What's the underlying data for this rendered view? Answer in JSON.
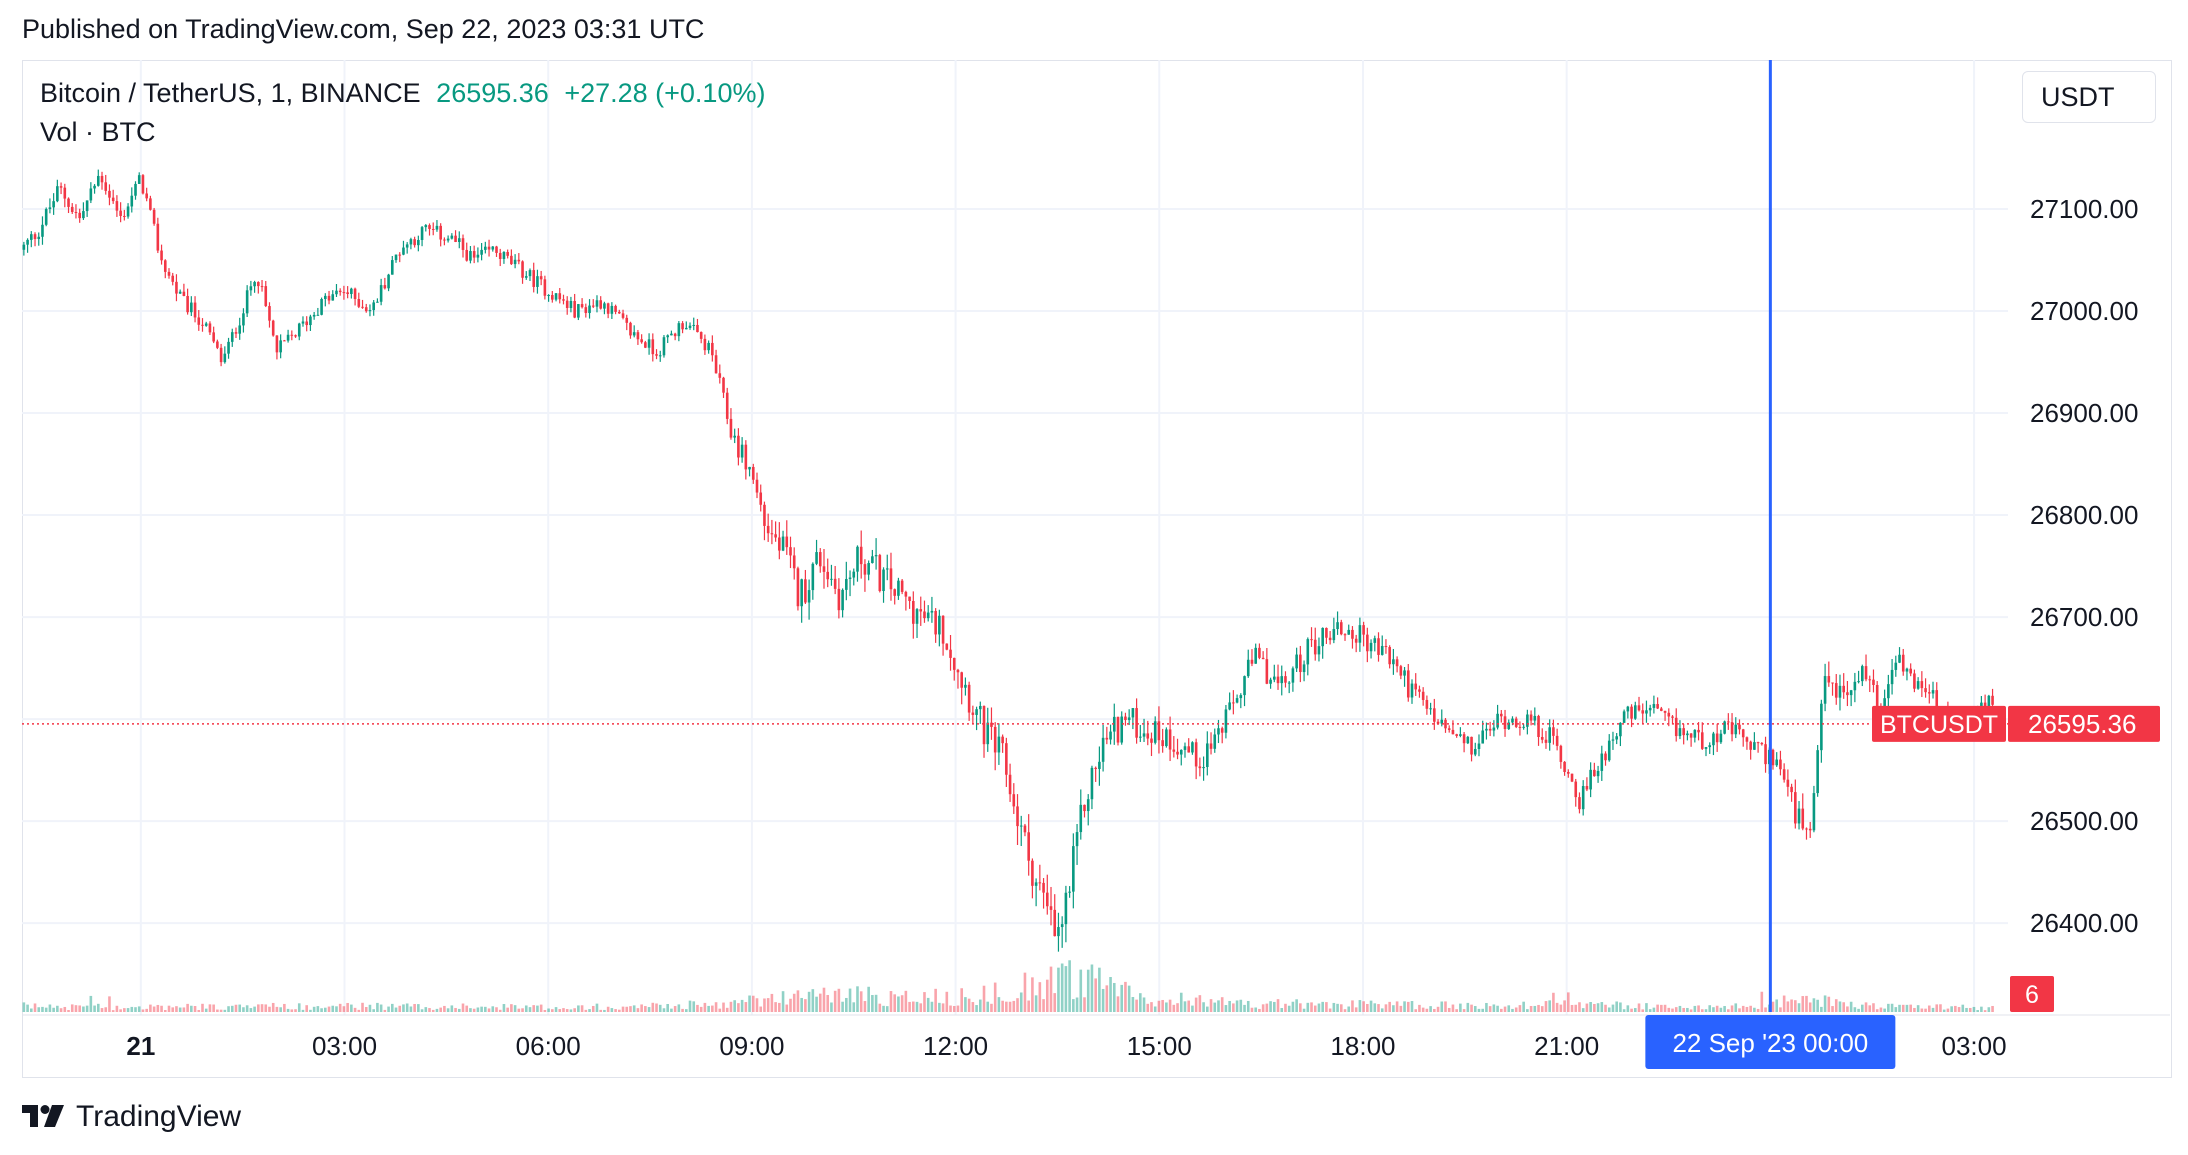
{
  "header": {
    "published": "Published on TradingView.com, Sep 22, 2023 03:31 UTC"
  },
  "legend": {
    "symbol": "Bitcoin / TetherUS, 1, BINANCE",
    "price": "26595.36",
    "change": "+27.28 (+0.10%)",
    "volume_label": "Vol · BTC"
  },
  "currency_button": "USDT",
  "footer": {
    "brand": "TradingView"
  },
  "colors": {
    "up": "#089981",
    "down": "#f23645",
    "crosshair": "#2962ff",
    "grid": "#f0f3fa",
    "price_line": "#f23645"
  },
  "chart_data": {
    "type": "candlestick",
    "symbol": "BTCUSDT",
    "exchange": "BINANCE",
    "interval": "1",
    "last_price": 26595.36,
    "last_price_label": "26595.36",
    "symbol_tag": "BTCUSDT",
    "volume_tag": "6",
    "y_ticks": [
      "27100.00",
      "27000.00",
      "26900.00",
      "26800.00",
      "26700.00",
      "26600.00",
      "26500.00",
      "26400.00"
    ],
    "y_tick_values": [
      27100,
      27000,
      26900,
      26800,
      26700,
      26600,
      26500,
      26400
    ],
    "ylim": [
      26310,
      27246
    ],
    "x_ticks": [
      "21",
      "03:00",
      "06:00",
      "09:00",
      "12:00",
      "15:00",
      "18:00",
      "21:00",
      "00:00",
      "03:00"
    ],
    "x_tick_hours": [
      0,
      3,
      6,
      9,
      12,
      15,
      18,
      21,
      24,
      27
    ],
    "x_tick_bold": [
      true,
      false,
      false,
      false,
      false,
      false,
      false,
      false,
      false,
      false
    ],
    "xlim_hours": [
      -1.75,
      27.5
    ],
    "crosshair": {
      "hour": 24,
      "label": "22 Sep '23   00:00"
    },
    "price_path": {
      "hours": [
        -1.75,
        -1.5,
        -1.2,
        -0.9,
        -0.6,
        -0.3,
        0,
        0.3,
        0.6,
        0.9,
        1.2,
        1.5,
        1.7,
        2.0,
        2.3,
        2.7,
        3.0,
        3.4,
        3.8,
        4.2,
        4.6,
        4.9,
        5.2,
        5.6,
        6.0,
        6.4,
        6.8,
        7.2,
        7.6,
        8.0,
        8.4,
        8.7,
        9.0,
        9.2,
        9.5,
        9.7,
        10.0,
        10.3,
        10.6,
        10.9,
        11.2,
        11.5,
        11.8,
        12.1,
        12.4,
        12.7,
        13.0,
        13.3,
        13.5,
        13.7,
        13.9,
        14.2,
        14.5,
        14.8,
        15.2,
        15.6,
        16.0,
        16.4,
        16.8,
        17.2,
        17.6,
        18.0,
        18.4,
        18.8,
        19.2,
        19.6,
        20.0,
        20.4,
        20.8,
        21.2,
        21.5,
        21.8,
        22.2,
        22.6,
        23.0,
        23.4,
        23.8,
        24.1,
        24.4,
        24.6,
        24.8,
        25.1,
        25.4,
        25.6,
        25.8,
        26.1,
        26.4,
        26.7,
        27.0,
        27.3
      ],
      "prices": [
        27060,
        27080,
        27120,
        27090,
        27135,
        27090,
        27130,
        27050,
        27010,
        26990,
        26950,
        27000,
        27040,
        26960,
        26980,
        27010,
        27020,
        27000,
        27060,
        27080,
        27070,
        27050,
        27060,
        27040,
        27020,
        27000,
        27010,
        26980,
        26960,
        26990,
        26960,
        26880,
        26840,
        26790,
        26760,
        26720,
        26760,
        26720,
        26760,
        26740,
        26720,
        26700,
        26690,
        26640,
        26590,
        26560,
        26480,
        26420,
        26380,
        26440,
        26520,
        26580,
        26600,
        26590,
        26580,
        26560,
        26600,
        26660,
        26630,
        26670,
        26690,
        26680,
        26660,
        26620,
        26590,
        26570,
        26600,
        26600,
        26580,
        26520,
        26560,
        26600,
        26610,
        26590,
        26580,
        26590,
        26570,
        26560,
        26500,
        26480,
        26640,
        26620,
        26650,
        26610,
        26660,
        26640,
        26620,
        26590,
        26600,
        26620
      ],
      "volatility": [
        1.8,
        1.8,
        1.8,
        1.8,
        1.8,
        1.8,
        1.6,
        1.6,
        1.6,
        1.6,
        1.6,
        1.5,
        1.5,
        1.5,
        1.5,
        1.5,
        1.5,
        1.5,
        1.5,
        1.5,
        1.5,
        1.5,
        1.5,
        1.5,
        1.5,
        1.5,
        1.5,
        1.5,
        1.5,
        1.5,
        1.5,
        2.2,
        2.5,
        3.0,
        3.5,
        3.5,
        3.5,
        3.5,
        3.5,
        3.5,
        3.0,
        3.0,
        3.0,
        3.5,
        3.5,
        3.5,
        4.0,
        4.0,
        4.5,
        4.5,
        4.0,
        3.5,
        3.0,
        3.0,
        3.0,
        2.5,
        2.5,
        2.5,
        2.5,
        2.5,
        2.5,
        2.5,
        2.5,
        2.5,
        2.0,
        2.0,
        2.0,
        2.0,
        2.0,
        2.0,
        2.0,
        2.0,
        2.0,
        2.0,
        2.0,
        2.0,
        2.0,
        2.0,
        3.0,
        3.0,
        3.0,
        2.5,
        2.5,
        2.5,
        2.5,
        2.0,
        2.0,
        2.0,
        2.0,
        2.0
      ]
    },
    "volume_profile": {
      "hours": [
        -1.75,
        0,
        3,
        6,
        8.5,
        9.5,
        10.5,
        11.5,
        12.5,
        13.0,
        13.5,
        14.0,
        14.5,
        15.0,
        16,
        18,
        20,
        21,
        22,
        23,
        24,
        24.4,
        25,
        26,
        27.5
      ],
      "level": [
        0.12,
        0.1,
        0.12,
        0.1,
        0.15,
        0.3,
        0.35,
        0.3,
        0.35,
        0.5,
        0.75,
        0.6,
        0.4,
        0.3,
        0.18,
        0.15,
        0.12,
        0.18,
        0.12,
        0.1,
        0.12,
        0.35,
        0.15,
        0.1,
        0.1
      ]
    }
  }
}
